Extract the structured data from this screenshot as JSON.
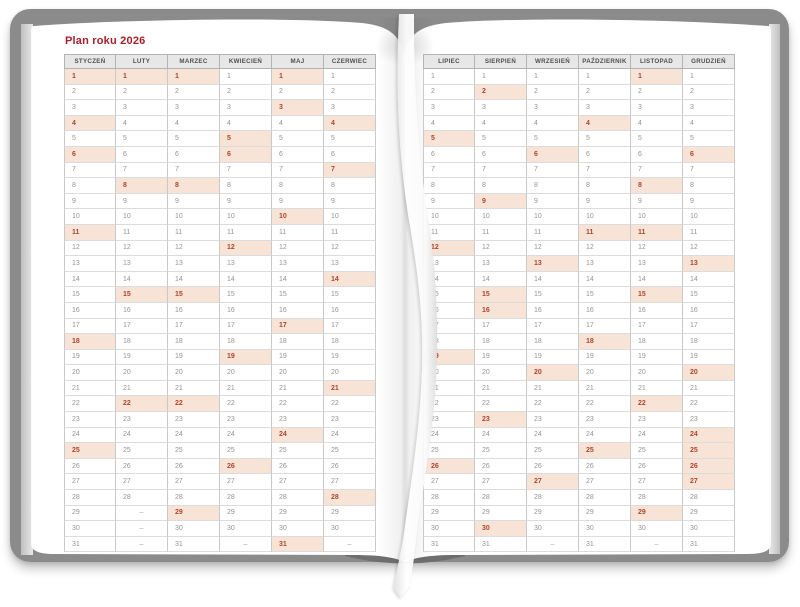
{
  "book": {
    "title": "Plan roku 2026"
  },
  "colors": {
    "cover": "#8b8b8b",
    "page": "#ffffff",
    "header_bg": "#e7e7e7",
    "header_text": "#4f4f4f",
    "header_border": "#b3b3b3",
    "grid_vertical": "#c9c9c9",
    "grid_horizontal": "#dcdcdc",
    "highlight_bg": "#f8e4d6",
    "highlight_text": "#ad4531",
    "day_text": "#949494",
    "dash": "#a0a0a0",
    "title_red": "#a6212b",
    "ribbon": "#ffffff"
  },
  "calendar": {
    "day_rows": 31,
    "empty_day_symbol": "–",
    "pages": [
      {
        "side": "left",
        "months": [
          {
            "label": "STYCZEŃ",
            "days": 31,
            "highlighted_days": [
              1,
              4,
              6,
              11,
              18,
              25
            ]
          },
          {
            "label": "LUTY",
            "days": 28,
            "highlighted_days": [
              1,
              8,
              15,
              22
            ]
          },
          {
            "label": "MARZEC",
            "days": 31,
            "highlighted_days": [
              1,
              8,
              15,
              22,
              29
            ]
          },
          {
            "label": "KWIECIEŃ",
            "days": 30,
            "highlighted_days": [
              5,
              6,
              12,
              19,
              26
            ]
          },
          {
            "label": "MAJ",
            "days": 31,
            "highlighted_days": [
              1,
              3,
              10,
              17,
              24,
              31
            ]
          },
          {
            "label": "CZERWIEC",
            "days": 30,
            "highlighted_days": [
              4,
              7,
              14,
              21,
              28
            ]
          }
        ]
      },
      {
        "side": "right",
        "months": [
          {
            "label": "LIPIEC",
            "days": 31,
            "highlighted_days": [
              5,
              12,
              19,
              26
            ]
          },
          {
            "label": "SIERPIEŃ",
            "days": 31,
            "highlighted_days": [
              2,
              9,
              15,
              16,
              23,
              30
            ]
          },
          {
            "label": "WRZESIEŃ",
            "days": 30,
            "highlighted_days": [
              6,
              13,
              20,
              27
            ]
          },
          {
            "label": "PAŹDZIERNIK",
            "days": 31,
            "highlighted_days": [
              4,
              11,
              18,
              25
            ]
          },
          {
            "label": "LISTOPAD",
            "days": 30,
            "highlighted_days": [
              1,
              8,
              11,
              15,
              22,
              29
            ]
          },
          {
            "label": "GRUDZIEŃ",
            "days": 31,
            "highlighted_days": [
              6,
              13,
              20,
              24,
              25,
              26,
              27
            ]
          }
        ]
      }
    ]
  }
}
